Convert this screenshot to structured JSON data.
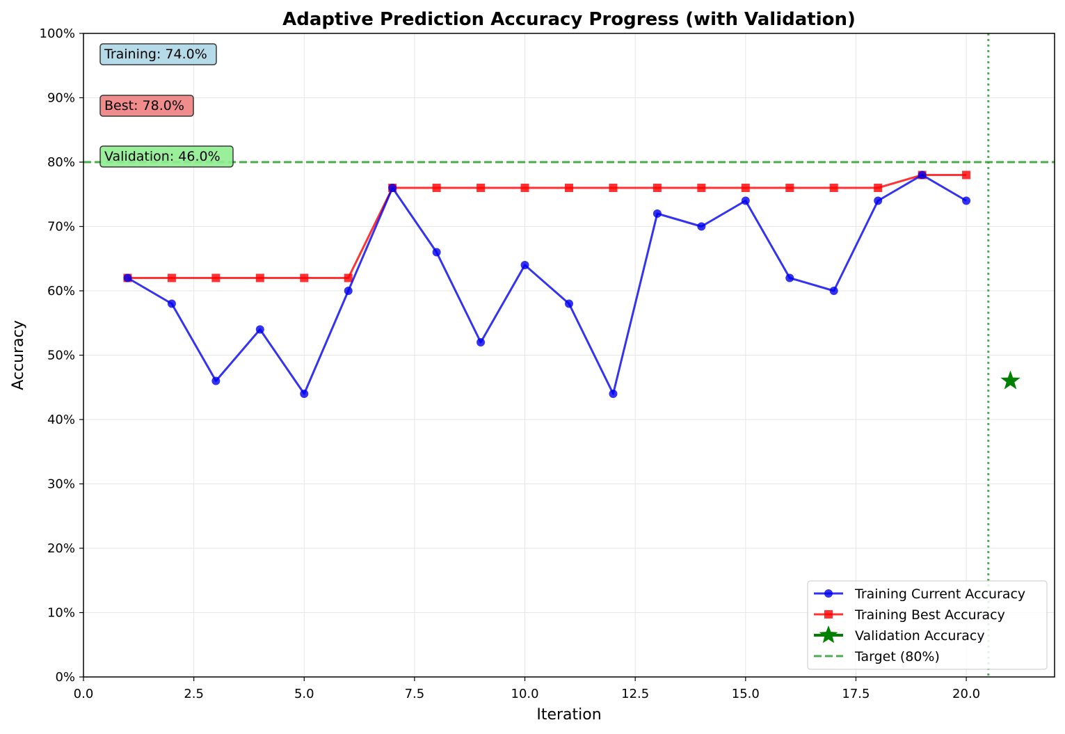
{
  "chart_data": {
    "type": "line",
    "title": "Adaptive Prediction Accuracy Progress (with Validation)",
    "xlabel": "Iteration",
    "ylabel": "Accuracy",
    "xlim": [
      0,
      22
    ],
    "ylim": [
      0,
      1
    ],
    "x_ticks": [
      0,
      2.5,
      5,
      7.5,
      10,
      12.5,
      15,
      17.5,
      20
    ],
    "x_tick_labels": [
      "0.0",
      "2.5",
      "5.0",
      "7.5",
      "10.0",
      "12.5",
      "15.0",
      "17.5",
      "20.0"
    ],
    "y_ticks": [
      0,
      0.1,
      0.2,
      0.3,
      0.4,
      0.5,
      0.6,
      0.7,
      0.8,
      0.9,
      1.0
    ],
    "y_tick_labels": [
      "0%",
      "10%",
      "20%",
      "30%",
      "40%",
      "50%",
      "60%",
      "70%",
      "80%",
      "90%",
      "100%"
    ],
    "grid": true,
    "legend_position": "bottom-right",
    "x": [
      1,
      2,
      3,
      4,
      5,
      6,
      7,
      8,
      9,
      10,
      11,
      12,
      13,
      14,
      15,
      16,
      17,
      18,
      19,
      20
    ],
    "series": [
      {
        "name": "Training Current Accuracy",
        "color": "#0000ee",
        "marker": "circle",
        "values": [
          0.62,
          0.58,
          0.46,
          0.54,
          0.44,
          0.6,
          0.76,
          0.66,
          0.52,
          0.64,
          0.58,
          0.44,
          0.72,
          0.7,
          0.74,
          0.62,
          0.6,
          0.74,
          0.78,
          0.74
        ]
      },
      {
        "name": "Training Best Accuracy",
        "color": "#ff0000",
        "marker": "square",
        "values": [
          0.62,
          0.62,
          0.62,
          0.62,
          0.62,
          0.62,
          0.76,
          0.76,
          0.76,
          0.76,
          0.76,
          0.76,
          0.76,
          0.76,
          0.76,
          0.76,
          0.76,
          0.76,
          0.78,
          0.78
        ]
      }
    ],
    "validation": {
      "name": "Validation Accuracy",
      "color": "#008000",
      "marker": "star",
      "x": 21,
      "value": 0.46
    },
    "target": {
      "name": "Target (80%)",
      "color": "#2ca02c",
      "value": 0.8
    },
    "validation_split_x": 20.5,
    "annotations": [
      {
        "text": "Training: 74.0%",
        "color": "#add8e6"
      },
      {
        "text": "Best: 78.0%",
        "color": "#f08080"
      },
      {
        "text": "Validation: 46.0%",
        "color": "#90ee90"
      }
    ]
  }
}
